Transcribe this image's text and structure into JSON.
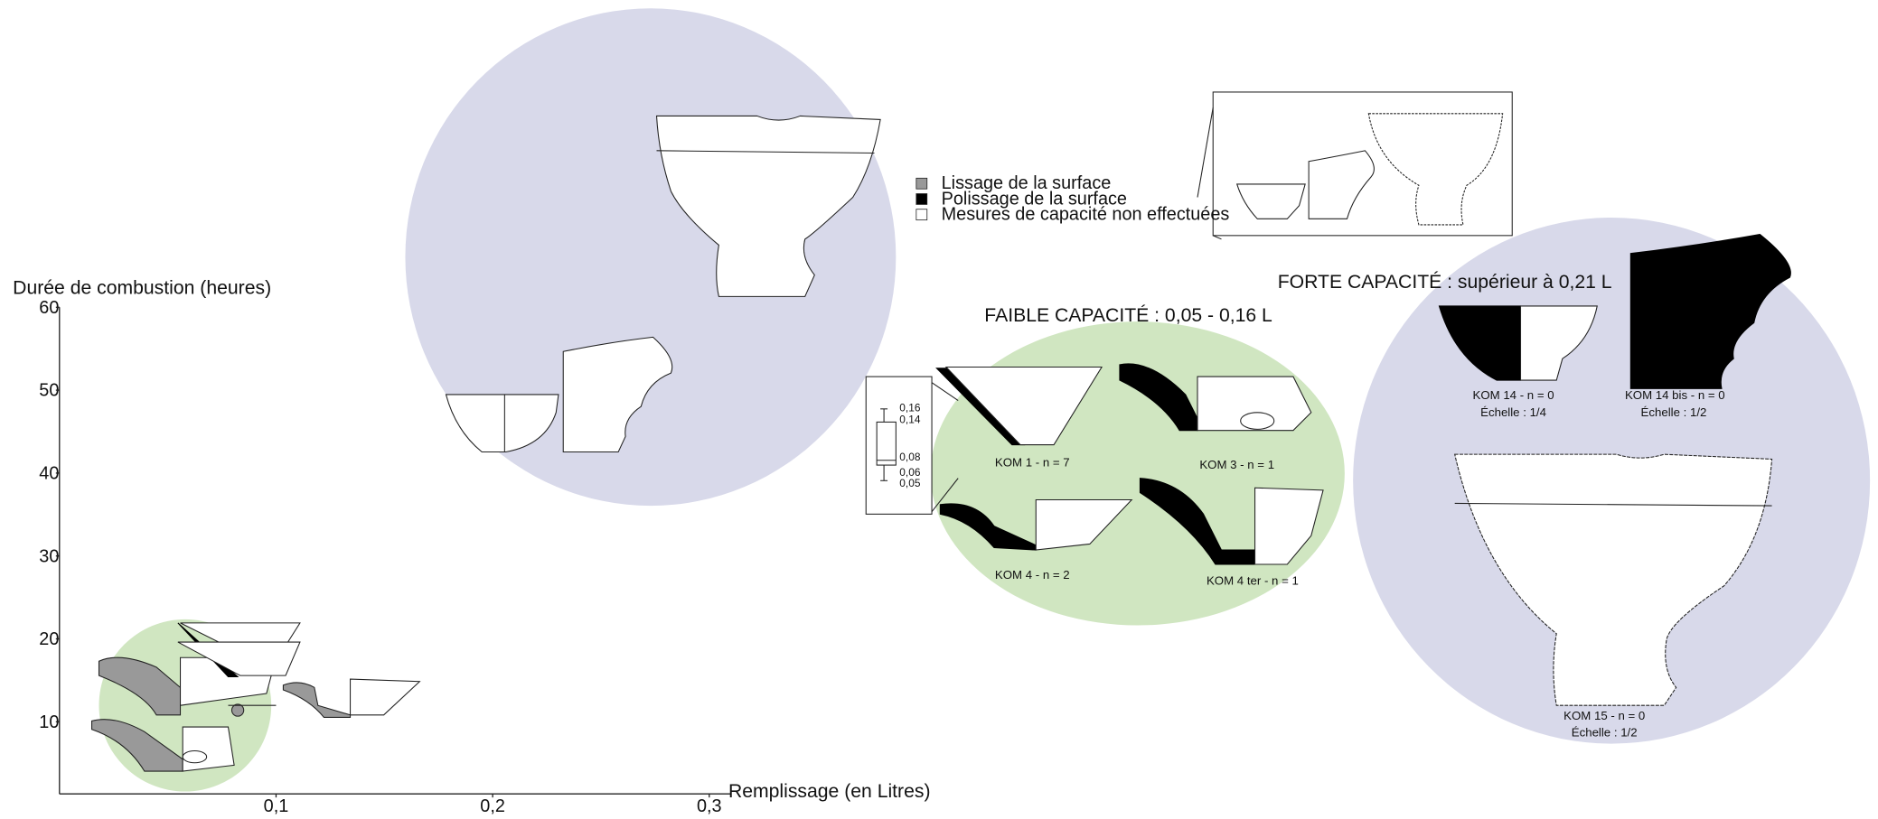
{
  "chart_data": {
    "type": "scatter",
    "xlabel": "Remplissage (en Litres)",
    "ylabel": "Durée de combustion (heures)",
    "xlim": [
      0,
      0.3
    ],
    "ylim": [
      0,
      60
    ],
    "xticks": [
      {
        "value": 0.1,
        "label": "0,1"
      },
      {
        "value": 0.2,
        "label": "0,2"
      },
      {
        "value": 0.3,
        "label": "0,3"
      }
    ],
    "yticks": [
      10,
      20,
      30,
      40,
      50,
      60
    ],
    "legend": [
      {
        "label": "Lissage de la surface",
        "color": "#999999"
      },
      {
        "label": "Polissage de la surface",
        "color": "#000000"
      },
      {
        "label": "Mesures de capacité non effectuées",
        "color": "#ffffff"
      }
    ],
    "group_labels": [
      "FAIBLE CAPACITÉ : 0,05 - 0,16 L",
      "FORTE CAPACITÉ :  supérieur à 0,21 L"
    ],
    "boxplot_labels": [
      "0,16",
      "0,14",
      "0,08",
      "0,06",
      "0,05"
    ],
    "vessel_labels": [
      "KOM 1 - n = 7",
      "KOM 3 - n = 1",
      "KOM 4 - n = 2",
      "KOM 4 ter - n = 1",
      "KOM 14 - n = 0",
      "Échelle : 1/4",
      "KOM 14 bis - n = 0",
      "Échelle : 1/2",
      "KOM 15 - n = 0",
      "Échelle : 1/2"
    ]
  }
}
